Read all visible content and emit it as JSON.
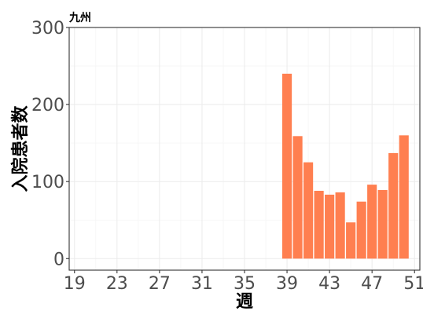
{
  "chart_data": {
    "type": "bar",
    "title": "九州",
    "xlabel": "週",
    "ylabel": "入院患者数",
    "x": [
      39,
      40,
      41,
      42,
      43,
      44,
      45,
      46,
      47,
      48,
      49,
      50
    ],
    "values": [
      240,
      159,
      125,
      88,
      83,
      86,
      47,
      74,
      96,
      89,
      137,
      160
    ],
    "xlim": [
      18.5,
      51.5
    ],
    "ylim": [
      -15,
      300
    ],
    "x_ticks": [
      "19",
      "23",
      "27",
      "31",
      "35",
      "39",
      "43",
      "47",
      "51"
    ],
    "y_ticks": [
      "0",
      "100",
      "200",
      "300"
    ],
    "grid": true,
    "colors": {
      "bar": "#ff7f50",
      "grid_major": "#ebebeb",
      "grid_minor": "#f5f5f5",
      "panel_border": "#333333",
      "tick_text": "#4d4d4d"
    }
  }
}
